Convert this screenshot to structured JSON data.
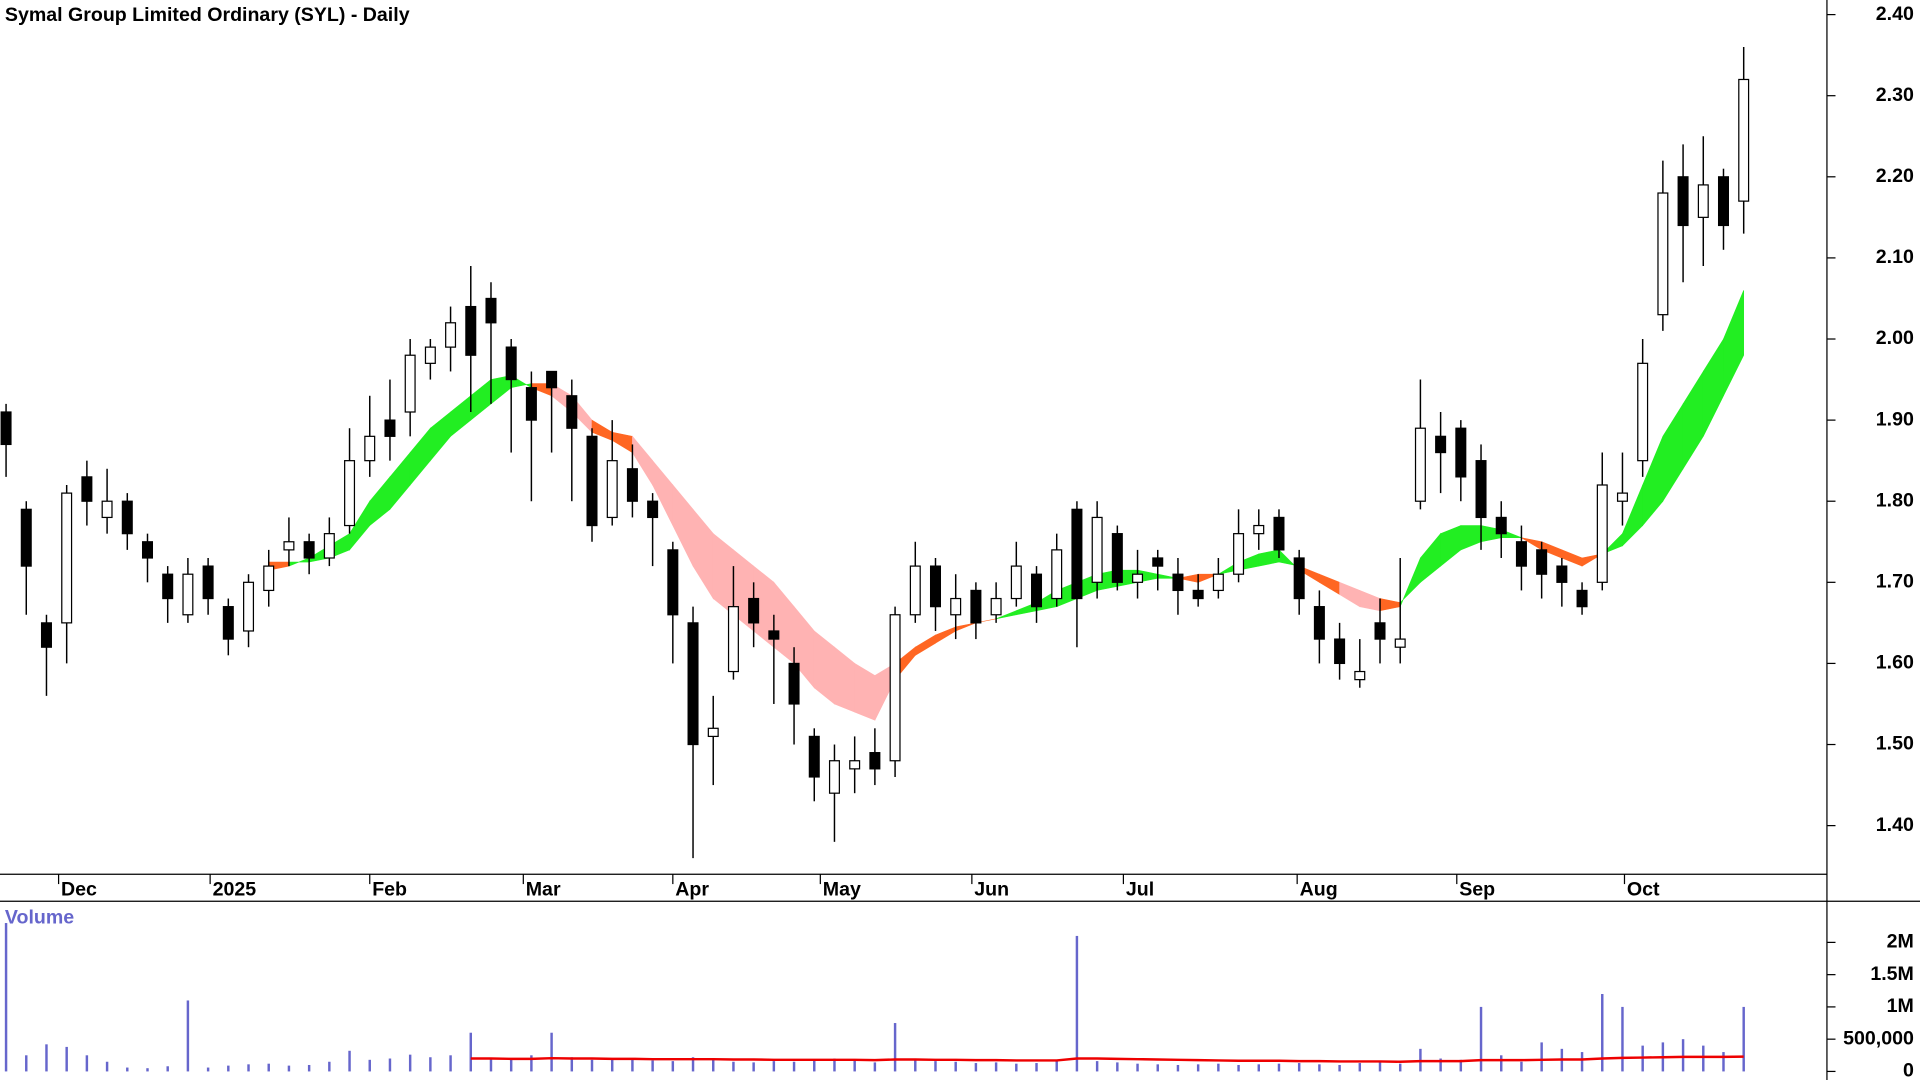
{
  "chart_data": [
    {
      "type": "candlestick",
      "title": "Symal Group Limited Ordinary (SYL) - Daily",
      "ohlc": [
        [
          1.91,
          1.92,
          1.83,
          1.87
        ],
        [
          1.79,
          1.8,
          1.66,
          1.72
        ],
        [
          1.65,
          1.66,
          1.56,
          1.62
        ],
        [
          1.65,
          1.82,
          1.6,
          1.81
        ],
        [
          1.83,
          1.85,
          1.77,
          1.8
        ],
        [
          1.78,
          1.84,
          1.76,
          1.8
        ],
        [
          1.8,
          1.81,
          1.74,
          1.76
        ],
        [
          1.75,
          1.76,
          1.7,
          1.73
        ],
        [
          1.71,
          1.72,
          1.65,
          1.68
        ],
        [
          1.66,
          1.73,
          1.65,
          1.71
        ],
        [
          1.72,
          1.73,
          1.66,
          1.68
        ],
        [
          1.67,
          1.68,
          1.61,
          1.63
        ],
        [
          1.64,
          1.71,
          1.62,
          1.7
        ],
        [
          1.69,
          1.74,
          1.67,
          1.72
        ],
        [
          1.74,
          1.78,
          1.72,
          1.75
        ],
        [
          1.75,
          1.76,
          1.71,
          1.73
        ],
        [
          1.73,
          1.78,
          1.72,
          1.76
        ],
        [
          1.77,
          1.89,
          1.76,
          1.85
        ],
        [
          1.85,
          1.93,
          1.83,
          1.88
        ],
        [
          1.9,
          1.95,
          1.85,
          1.88
        ],
        [
          1.91,
          2.0,
          1.88,
          1.98
        ],
        [
          1.97,
          2.0,
          1.95,
          1.99
        ],
        [
          1.99,
          2.04,
          1.96,
          2.02
        ],
        [
          2.04,
          2.09,
          1.91,
          1.98
        ],
        [
          2.05,
          2.07,
          1.92,
          2.02
        ],
        [
          1.99,
          2.0,
          1.86,
          1.95
        ],
        [
          1.94,
          1.96,
          1.8,
          1.9
        ],
        [
          1.96,
          1.96,
          1.86,
          1.94
        ],
        [
          1.93,
          1.95,
          1.8,
          1.89
        ],
        [
          1.88,
          1.89,
          1.75,
          1.77
        ],
        [
          1.78,
          1.9,
          1.77,
          1.85
        ],
        [
          1.84,
          1.87,
          1.78,
          1.8
        ],
        [
          1.8,
          1.81,
          1.72,
          1.78
        ],
        [
          1.74,
          1.75,
          1.6,
          1.66
        ],
        [
          1.65,
          1.67,
          1.36,
          1.5
        ],
        [
          1.51,
          1.56,
          1.45,
          1.52
        ],
        [
          1.59,
          1.72,
          1.58,
          1.67
        ],
        [
          1.68,
          1.7,
          1.62,
          1.65
        ],
        [
          1.64,
          1.66,
          1.55,
          1.63
        ],
        [
          1.6,
          1.62,
          1.5,
          1.55
        ],
        [
          1.51,
          1.52,
          1.43,
          1.46
        ],
        [
          1.44,
          1.5,
          1.38,
          1.48
        ],
        [
          1.47,
          1.51,
          1.44,
          1.48
        ],
        [
          1.49,
          1.52,
          1.45,
          1.47
        ],
        [
          1.48,
          1.67,
          1.46,
          1.66
        ],
        [
          1.66,
          1.75,
          1.65,
          1.72
        ],
        [
          1.72,
          1.73,
          1.64,
          1.67
        ],
        [
          1.66,
          1.71,
          1.63,
          1.68
        ],
        [
          1.69,
          1.7,
          1.63,
          1.65
        ],
        [
          1.66,
          1.7,
          1.65,
          1.68
        ],
        [
          1.68,
          1.75,
          1.67,
          1.72
        ],
        [
          1.71,
          1.72,
          1.65,
          1.67
        ],
        [
          1.68,
          1.76,
          1.67,
          1.74
        ],
        [
          1.79,
          1.8,
          1.62,
          1.68
        ],
        [
          1.7,
          1.8,
          1.68,
          1.78
        ],
        [
          1.76,
          1.77,
          1.69,
          1.7
        ],
        [
          1.7,
          1.74,
          1.68,
          1.71
        ],
        [
          1.73,
          1.74,
          1.69,
          1.72
        ],
        [
          1.71,
          1.73,
          1.66,
          1.69
        ],
        [
          1.69,
          1.71,
          1.67,
          1.68
        ],
        [
          1.69,
          1.73,
          1.68,
          1.71
        ],
        [
          1.71,
          1.79,
          1.7,
          1.76
        ],
        [
          1.76,
          1.79,
          1.74,
          1.77
        ],
        [
          1.78,
          1.79,
          1.73,
          1.74
        ],
        [
          1.73,
          1.74,
          1.66,
          1.68
        ],
        [
          1.67,
          1.69,
          1.6,
          1.63
        ],
        [
          1.63,
          1.65,
          1.58,
          1.6
        ],
        [
          1.58,
          1.63,
          1.57,
          1.59
        ],
        [
          1.65,
          1.68,
          1.6,
          1.63
        ],
        [
          1.62,
          1.73,
          1.6,
          1.63
        ],
        [
          1.8,
          1.95,
          1.79,
          1.89
        ],
        [
          1.88,
          1.91,
          1.81,
          1.86
        ],
        [
          1.89,
          1.9,
          1.8,
          1.83
        ],
        [
          1.85,
          1.87,
          1.74,
          1.78
        ],
        [
          1.78,
          1.8,
          1.73,
          1.76
        ],
        [
          1.75,
          1.77,
          1.69,
          1.72
        ],
        [
          1.74,
          1.75,
          1.68,
          1.71
        ],
        [
          1.72,
          1.73,
          1.67,
          1.7
        ],
        [
          1.69,
          1.7,
          1.66,
          1.67
        ],
        [
          1.7,
          1.86,
          1.69,
          1.82
        ],
        [
          1.8,
          1.86,
          1.77,
          1.81
        ],
        [
          1.85,
          2.0,
          1.83,
          1.97
        ],
        [
          2.03,
          2.22,
          2.01,
          2.18
        ],
        [
          2.2,
          2.24,
          2.07,
          2.14
        ],
        [
          2.15,
          2.25,
          2.09,
          2.19
        ],
        [
          2.2,
          2.21,
          2.11,
          2.14
        ],
        [
          2.17,
          2.36,
          2.13,
          2.32
        ]
      ],
      "ribbon_fast": [
        null,
        null,
        null,
        null,
        null,
        null,
        null,
        null,
        null,
        null,
        null,
        null,
        null,
        1.715,
        1.72,
        1.73,
        1.745,
        1.76,
        1.8,
        1.83,
        1.86,
        1.89,
        1.91,
        1.93,
        1.95,
        1.955,
        1.94,
        1.93,
        1.91,
        1.885,
        1.875,
        1.86,
        1.82,
        1.77,
        1.72,
        1.68,
        1.66,
        1.64,
        1.62,
        1.6,
        1.57,
        1.55,
        1.54,
        1.53,
        1.58,
        1.61,
        1.625,
        1.64,
        1.65,
        1.655,
        1.665,
        1.675,
        1.69,
        1.7,
        1.71,
        1.715,
        1.715,
        1.71,
        1.705,
        1.7,
        1.71,
        1.725,
        1.735,
        1.74,
        1.715,
        1.7,
        1.685,
        1.67,
        1.665,
        1.67,
        1.73,
        1.76,
        1.77,
        1.77,
        1.765,
        1.755,
        1.74,
        1.73,
        1.72,
        1.735,
        1.76,
        1.82,
        1.88,
        1.92,
        1.96,
        2.0,
        2.06
      ],
      "ribbon_slow": [
        null,
        null,
        null,
        null,
        null,
        null,
        null,
        null,
        null,
        null,
        null,
        null,
        null,
        1.725,
        1.725,
        1.725,
        1.73,
        1.74,
        1.77,
        1.79,
        1.82,
        1.85,
        1.88,
        1.9,
        1.92,
        1.94,
        1.945,
        1.945,
        1.93,
        1.9,
        1.885,
        1.88,
        1.85,
        1.82,
        1.79,
        1.76,
        1.74,
        1.72,
        1.7,
        1.67,
        1.64,
        1.62,
        1.6,
        1.585,
        1.6,
        1.62,
        1.635,
        1.645,
        1.65,
        1.655,
        1.66,
        1.665,
        1.67,
        1.68,
        1.69,
        1.695,
        1.7,
        1.705,
        1.705,
        1.71,
        1.71,
        1.715,
        1.72,
        1.725,
        1.72,
        1.71,
        1.7,
        1.69,
        1.68,
        1.675,
        1.7,
        1.72,
        1.74,
        1.75,
        1.755,
        1.755,
        1.75,
        1.74,
        1.73,
        1.735,
        1.745,
        1.77,
        1.8,
        1.84,
        1.88,
        1.93,
        1.98
      ],
      "colors": {
        "up": "#ffffff",
        "down": "#000000",
        "outline": "#000000",
        "ribbon_up": "#22ee22",
        "ribbon_down": "#ff6622",
        "ribbon_weak": "#ffb3b3"
      },
      "xlim": [
        -0.3,
        90.12
      ],
      "ylim": [
        1.34,
        2.418
      ],
      "yticks": [
        {
          "value": 1.4,
          "label": "1.40"
        },
        {
          "value": 1.5,
          "label": "1.50"
        },
        {
          "value": 1.6,
          "label": "1.60"
        },
        {
          "value": 1.7,
          "label": "1.70"
        },
        {
          "value": 1.8,
          "label": "1.80"
        },
        {
          "value": 1.9,
          "label": "1.90"
        },
        {
          "value": 2.0,
          "label": "2.00"
        },
        {
          "value": 2.1,
          "label": "2.10"
        },
        {
          "value": 2.2,
          "label": "2.20"
        },
        {
          "value": 2.3,
          "label": "2.30"
        },
        {
          "value": 2.4,
          "label": "2.40"
        }
      ],
      "xticks": [
        {
          "value": 2.6,
          "label": "Dec"
        },
        {
          "value": 10.1,
          "label": "2025"
        },
        {
          "value": 18,
          "label": "Feb"
        },
        {
          "value": 25.6,
          "label": "Mar"
        },
        {
          "value": 33,
          "label": "Apr"
        },
        {
          "value": 40.3,
          "label": "May"
        },
        {
          "value": 47.8,
          "label": "Jun"
        },
        {
          "value": 55.3,
          "label": "Jul"
        },
        {
          "value": 63.9,
          "label": "Aug"
        },
        {
          "value": 71.8,
          "label": "Sep"
        },
        {
          "value": 80.1,
          "label": "Oct"
        }
      ]
    },
    {
      "type": "bar",
      "title": "Volume",
      "values": [
        2300000,
        250000,
        420000,
        380000,
        250000,
        150000,
        60000,
        50000,
        80000,
        1100000,
        60000,
        90000,
        110000,
        120000,
        90000,
        100000,
        150000,
        320000,
        180000,
        200000,
        260000,
        220000,
        250000,
        600000,
        200000,
        180000,
        250000,
        600000,
        220000,
        180000,
        200000,
        190000,
        170000,
        160000,
        220000,
        180000,
        150000,
        140000,
        160000,
        150000,
        170000,
        200000,
        180000,
        140000,
        750000,
        200000,
        160000,
        150000,
        130000,
        140000,
        120000,
        130000,
        170000,
        2100000,
        160000,
        140000,
        120000,
        110000,
        100000,
        110000,
        120000,
        100000,
        110000,
        120000,
        130000,
        110000,
        100000,
        130000,
        150000,
        120000,
        350000,
        200000,
        180000,
        1000000,
        250000,
        150000,
        450000,
        350000,
        300000,
        1200000,
        1000000,
        400000,
        450000,
        500000,
        400000,
        300000,
        1000000
      ],
      "average": [
        null,
        null,
        null,
        null,
        null,
        null,
        null,
        null,
        null,
        null,
        null,
        null,
        null,
        null,
        null,
        null,
        null,
        null,
        null,
        null,
        null,
        null,
        null,
        200000,
        200000,
        195000,
        195000,
        205000,
        200000,
        200000,
        195000,
        195000,
        190000,
        190000,
        190000,
        190000,
        185000,
        185000,
        180000,
        180000,
        180000,
        180000,
        180000,
        175000,
        185000,
        185000,
        180000,
        180000,
        175000,
        175000,
        170000,
        170000,
        170000,
        200000,
        200000,
        195000,
        190000,
        185000,
        180000,
        175000,
        170000,
        165000,
        165000,
        165000,
        160000,
        160000,
        155000,
        155000,
        155000,
        150000,
        160000,
        160000,
        160000,
        175000,
        175000,
        175000,
        180000,
        185000,
        185000,
        200000,
        210000,
        215000,
        220000,
        225000,
        225000,
        225000,
        230000
      ],
      "color": "#6666cc",
      "average_color": "#ee0000",
      "xlim": [
        -0.3,
        90.12
      ],
      "ylim": [
        0,
        2600000
      ],
      "yticks": [
        0,
        {
          "value": 500000,
          "label": "500,000"
        },
        {
          "value": 1000000,
          "label": "1M"
        },
        {
          "value": 1500000,
          "label": "1.5M"
        },
        {
          "value": 2000000,
          "label": "2M"
        }
      ]
    }
  ]
}
